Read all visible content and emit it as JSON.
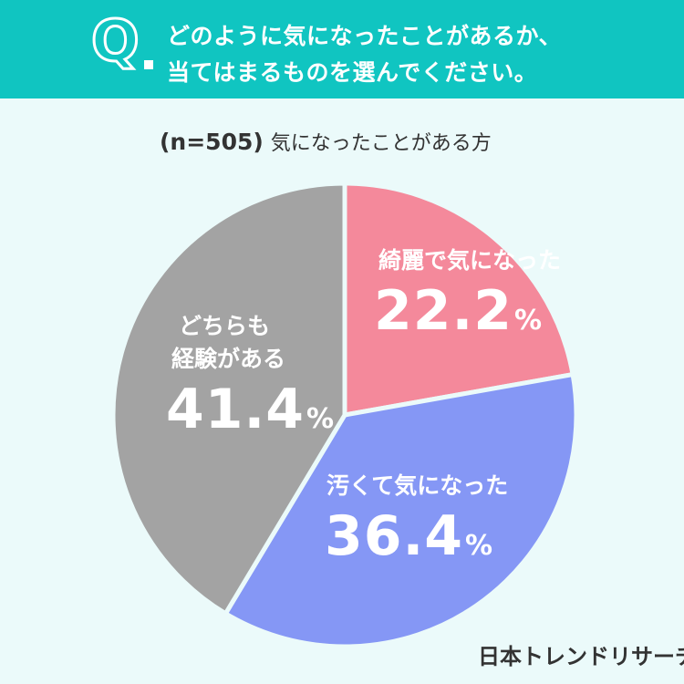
{
  "header": {
    "q_letter": "Q",
    "question_line1": "どのように気になったことがあるか、",
    "question_line2": "当てはまるものを選んでください。"
  },
  "subtitle": {
    "n_label": "(n=505)",
    "text": "気になったことがある方"
  },
  "chart_data": {
    "type": "pie",
    "start_angle_deg": 0,
    "direction": "clockwise",
    "slices": [
      {
        "label": "綺麗で気になった",
        "value": 22.2,
        "display": "22.2",
        "color": "#f4899b"
      },
      {
        "label": "汚くて気になった",
        "value": 36.4,
        "display": "36.4",
        "color": "#8597f5"
      },
      {
        "label": "どちらも経験がある",
        "label_line1": "どちらも",
        "label_line2": "経験がある",
        "value": 41.4,
        "display": "41.4",
        "color": "#a3a3a3"
      }
    ],
    "percent_sign": "%"
  },
  "credit": "日本トレンドリサーチ"
}
